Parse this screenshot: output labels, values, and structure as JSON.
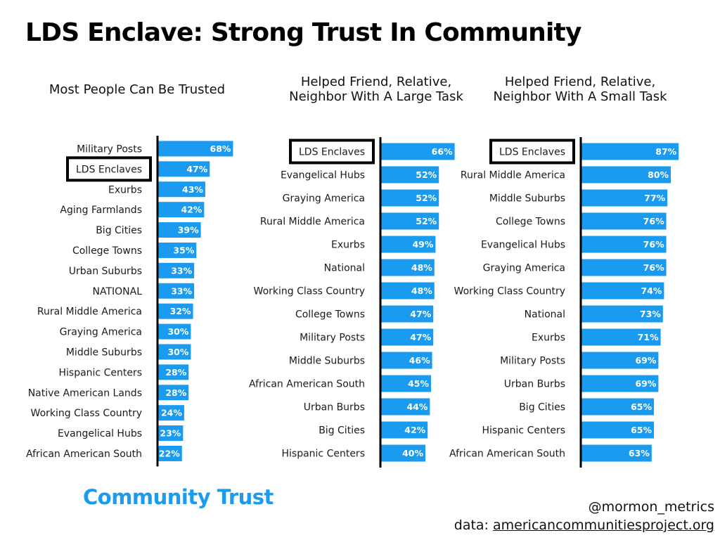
{
  "title": "LDS Enclave: Strong Trust In Community",
  "footer_label": "Community Trust",
  "credit": {
    "handle": "@mormon_metrics",
    "source_prefix": "data: ",
    "source_link": "americancommunitiesproject.org"
  },
  "colors": {
    "bar": "#1a9bf0",
    "axis": "#000000",
    "highlight_box": "#000000"
  },
  "chart_data": [
    {
      "type": "bar",
      "orientation": "horizontal",
      "title": "Most People Can Be Trusted",
      "categories": [
        "Military Posts",
        "LDS Enclaves",
        "Exurbs",
        "Aging Farmlands",
        "Big Cities",
        "College Towns",
        "Urban Suburbs",
        "NATIONAL",
        "Rural Middle America",
        "Graying America",
        "Middle Suburbs",
        "Hispanic Centers",
        "Native American Lands",
        "Working Class Country",
        "Evangelical Hubs",
        "African American South"
      ],
      "values": [
        68,
        47,
        43,
        42,
        39,
        35,
        33,
        33,
        32,
        30,
        30,
        28,
        28,
        24,
        23,
        22
      ],
      "labels": [
        "68%",
        "47%",
        "43%",
        "42%",
        "39%",
        "35%",
        "33%",
        "33%",
        "32%",
        "30%",
        "30%",
        "28%",
        "28%",
        "24%",
        "23%",
        "22%"
      ],
      "highlight": "LDS Enclaves",
      "xlim": [
        0,
        100
      ]
    },
    {
      "type": "bar",
      "orientation": "horizontal",
      "title": "Helped Friend, Relative, Neighbor With A Large Task",
      "categories": [
        "LDS Enclaves",
        "Evangelical Hubs",
        "Graying America",
        "Rural Middle America",
        "Exurbs",
        "National",
        "Working Class Country",
        "College Towns",
        "Military Posts",
        "Middle Suburbs",
        "African American South",
        "Urban Burbs",
        "Big Cities",
        "Hispanic Centers"
      ],
      "values": [
        66,
        52,
        52,
        52,
        49,
        48,
        48,
        47,
        47,
        46,
        45,
        44,
        42,
        40
      ],
      "labels": [
        "66%",
        "52%",
        "52%",
        "52%",
        "49%",
        "48%",
        "48%",
        "47%",
        "47%",
        "46%",
        "45%",
        "44%",
        "42%",
        "40%"
      ],
      "highlight": "LDS Enclaves",
      "xlim": [
        0,
        100
      ]
    },
    {
      "type": "bar",
      "orientation": "horizontal",
      "title": "Helped Friend, Relative, Neighbor With A Small Task",
      "categories": [
        "LDS Enclaves",
        "Rural Middle America",
        "Middle Suburbs",
        "College Towns",
        "Evangelical Hubs",
        "Graying America",
        "Working Class Country",
        "National",
        "Exurbs",
        "Military Posts",
        "Urban Burbs",
        "Big Cities",
        "Hispanic Centers",
        "African American South"
      ],
      "values": [
        87,
        80,
        77,
        76,
        76,
        76,
        74,
        73,
        71,
        69,
        69,
        65,
        65,
        63
      ],
      "labels": [
        "87%",
        "80%",
        "77%",
        "76%",
        "76%",
        "76%",
        "74%",
        "73%",
        "71%",
        "69%",
        "69%",
        "65%",
        "65%",
        "63%"
      ],
      "highlight": "LDS Enclaves",
      "xlim": [
        0,
        100
      ]
    }
  ]
}
